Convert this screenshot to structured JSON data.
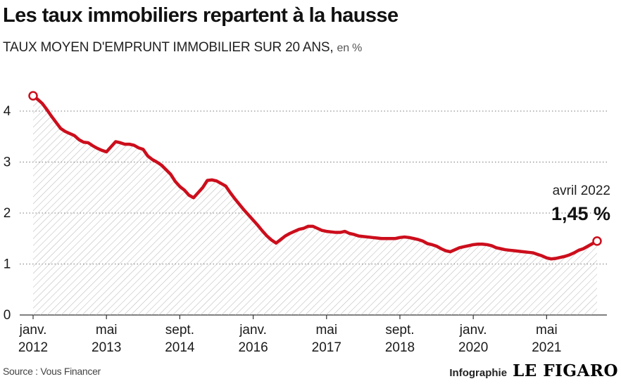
{
  "header": {
    "title": "Les taux immobiliers repartent à la hausse",
    "subtitle_main": "TAUX MOYEN D'EMPRUNT IMMOBILIER SUR 20 ANS,",
    "subtitle_unit": "en %"
  },
  "footer": {
    "source": "Source : Vous Financer",
    "credit_label": "Infographie",
    "logo_text": "LE FIGARO"
  },
  "colors": {
    "line": "#cc0e1c",
    "hatch": "#b9b9b9",
    "grid": "#777777",
    "text": "#1a1a1a"
  },
  "chart_data": {
    "type": "area",
    "x_range": [
      "2012-01",
      "2022-04"
    ],
    "y_range": [
      0,
      4.5
    ],
    "yticks": [
      0,
      1,
      2,
      3,
      4
    ],
    "grid": "horizontal dotted",
    "xticks": [
      {
        "date": "2012-01",
        "line1": "janv.",
        "line2": "2012"
      },
      {
        "date": "2013-05",
        "line1": "mai",
        "line2": "2013"
      },
      {
        "date": "2014-09",
        "line1": "sept.",
        "line2": "2014"
      },
      {
        "date": "2016-01",
        "line1": "janv.",
        "line2": "2016"
      },
      {
        "date": "2017-05",
        "line1": "mai",
        "line2": "2017"
      },
      {
        "date": "2018-09",
        "line1": "sept.",
        "line2": "2018"
      },
      {
        "date": "2020-01",
        "line1": "janv.",
        "line2": "2020"
      },
      {
        "date": "2021-05",
        "line1": "mai",
        "line2": "2021"
      }
    ],
    "annotation": {
      "label": "avril 2022",
      "value_text": "1,45 %"
    },
    "series": [
      {
        "points": [
          [
            "2012-01",
            4.3
          ],
          [
            "2012-02",
            4.23
          ],
          [
            "2012-03",
            4.15
          ],
          [
            "2012-04",
            4.03
          ],
          [
            "2012-05",
            3.9
          ],
          [
            "2012-06",
            3.78
          ],
          [
            "2012-07",
            3.66
          ],
          [
            "2012-08",
            3.6
          ],
          [
            "2012-09",
            3.56
          ],
          [
            "2012-10",
            3.52
          ],
          [
            "2012-11",
            3.44
          ],
          [
            "2012-12",
            3.39
          ],
          [
            "2013-01",
            3.38
          ],
          [
            "2013-02",
            3.32
          ],
          [
            "2013-03",
            3.27
          ],
          [
            "2013-04",
            3.23
          ],
          [
            "2013-05",
            3.2
          ],
          [
            "2013-06",
            3.3
          ],
          [
            "2013-07",
            3.4
          ],
          [
            "2013-08",
            3.38
          ],
          [
            "2013-09",
            3.35
          ],
          [
            "2013-10",
            3.35
          ],
          [
            "2013-11",
            3.33
          ],
          [
            "2013-12",
            3.28
          ],
          [
            "2014-01",
            3.25
          ],
          [
            "2014-02",
            3.12
          ],
          [
            "2014-03",
            3.05
          ],
          [
            "2014-04",
            3.0
          ],
          [
            "2014-05",
            2.94
          ],
          [
            "2014-06",
            2.85
          ],
          [
            "2014-07",
            2.76
          ],
          [
            "2014-08",
            2.62
          ],
          [
            "2014-09",
            2.52
          ],
          [
            "2014-10",
            2.45
          ],
          [
            "2014-11",
            2.35
          ],
          [
            "2014-12",
            2.3
          ],
          [
            "2015-01",
            2.4
          ],
          [
            "2015-02",
            2.5
          ],
          [
            "2015-03",
            2.64
          ],
          [
            "2015-04",
            2.65
          ],
          [
            "2015-05",
            2.63
          ],
          [
            "2015-06",
            2.58
          ],
          [
            "2015-07",
            2.53
          ],
          [
            "2015-08",
            2.4
          ],
          [
            "2015-09",
            2.28
          ],
          [
            "2015-10",
            2.17
          ],
          [
            "2015-11",
            2.06
          ],
          [
            "2015-12",
            1.96
          ],
          [
            "2016-01",
            1.86
          ],
          [
            "2016-02",
            1.76
          ],
          [
            "2016-03",
            1.65
          ],
          [
            "2016-04",
            1.55
          ],
          [
            "2016-05",
            1.47
          ],
          [
            "2016-06",
            1.41
          ],
          [
            "2016-07",
            1.48
          ],
          [
            "2016-08",
            1.55
          ],
          [
            "2016-09",
            1.6
          ],
          [
            "2016-10",
            1.64
          ],
          [
            "2016-11",
            1.68
          ],
          [
            "2016-12",
            1.7
          ],
          [
            "2017-01",
            1.74
          ],
          [
            "2017-02",
            1.74
          ],
          [
            "2017-03",
            1.7
          ],
          [
            "2017-04",
            1.66
          ],
          [
            "2017-05",
            1.64
          ],
          [
            "2017-06",
            1.63
          ],
          [
            "2017-07",
            1.62
          ],
          [
            "2017-08",
            1.62
          ],
          [
            "2017-09",
            1.64
          ],
          [
            "2017-10",
            1.6
          ],
          [
            "2017-11",
            1.58
          ],
          [
            "2017-12",
            1.55
          ],
          [
            "2018-01",
            1.54
          ],
          [
            "2018-02",
            1.53
          ],
          [
            "2018-03",
            1.52
          ],
          [
            "2018-04",
            1.51
          ],
          [
            "2018-05",
            1.5
          ],
          [
            "2018-06",
            1.5
          ],
          [
            "2018-07",
            1.5
          ],
          [
            "2018-08",
            1.5
          ],
          [
            "2018-09",
            1.52
          ],
          [
            "2018-10",
            1.53
          ],
          [
            "2018-11",
            1.52
          ],
          [
            "2018-12",
            1.5
          ],
          [
            "2019-01",
            1.48
          ],
          [
            "2019-02",
            1.45
          ],
          [
            "2019-03",
            1.4
          ],
          [
            "2019-04",
            1.38
          ],
          [
            "2019-05",
            1.35
          ],
          [
            "2019-06",
            1.3
          ],
          [
            "2019-07",
            1.26
          ],
          [
            "2019-08",
            1.24
          ],
          [
            "2019-09",
            1.28
          ],
          [
            "2019-10",
            1.32
          ],
          [
            "2019-11",
            1.34
          ],
          [
            "2019-12",
            1.36
          ],
          [
            "2020-01",
            1.38
          ],
          [
            "2020-02",
            1.39
          ],
          [
            "2020-03",
            1.39
          ],
          [
            "2020-04",
            1.38
          ],
          [
            "2020-05",
            1.36
          ],
          [
            "2020-06",
            1.32
          ],
          [
            "2020-07",
            1.3
          ],
          [
            "2020-08",
            1.28
          ],
          [
            "2020-09",
            1.27
          ],
          [
            "2020-10",
            1.26
          ],
          [
            "2020-11",
            1.25
          ],
          [
            "2020-12",
            1.24
          ],
          [
            "2021-01",
            1.23
          ],
          [
            "2021-02",
            1.22
          ],
          [
            "2021-03",
            1.19
          ],
          [
            "2021-04",
            1.16
          ],
          [
            "2021-05",
            1.12
          ],
          [
            "2021-06",
            1.1
          ],
          [
            "2021-07",
            1.11
          ],
          [
            "2021-08",
            1.13
          ],
          [
            "2021-09",
            1.15
          ],
          [
            "2021-10",
            1.18
          ],
          [
            "2021-11",
            1.22
          ],
          [
            "2021-12",
            1.27
          ],
          [
            "2022-01",
            1.3
          ],
          [
            "2022-02",
            1.35
          ],
          [
            "2022-03",
            1.4
          ],
          [
            "2022-04",
            1.45
          ]
        ]
      }
    ]
  }
}
